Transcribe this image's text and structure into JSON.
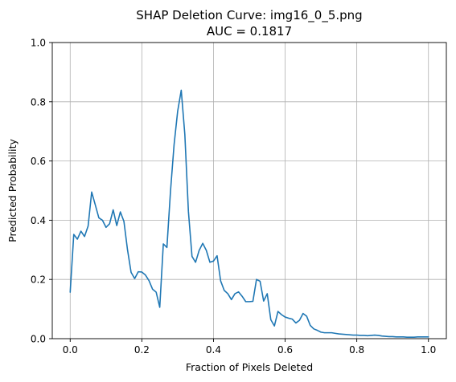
{
  "chart_data": {
    "type": "line",
    "title": "SHAP Deletion Curve: img16_0_5.png",
    "subtitle": "AUC = 0.1817",
    "xlabel": "Fraction of Pixels Deleted",
    "ylabel": "Predicted Probability",
    "xlim": [
      -0.05,
      1.05
    ],
    "ylim": [
      0.0,
      1.0
    ],
    "xticks": [
      0.0,
      0.2,
      0.4,
      0.6,
      0.8,
      1.0
    ],
    "xtick_labels": [
      "0.0",
      "0.2",
      "0.4",
      "0.6",
      "0.8",
      "1.0"
    ],
    "yticks": [
      0.0,
      0.2,
      0.4,
      0.6,
      0.8,
      1.0
    ],
    "ytick_labels": [
      "0.0",
      "0.2",
      "0.4",
      "0.6",
      "0.8",
      "1.0"
    ],
    "grid": true,
    "series": [
      {
        "color": "#1f77b4",
        "x": [
          0.0,
          0.01,
          0.02,
          0.03,
          0.04,
          0.05,
          0.06,
          0.07,
          0.08,
          0.09,
          0.1,
          0.11,
          0.12,
          0.13,
          0.14,
          0.15,
          0.16,
          0.17,
          0.18,
          0.19,
          0.2,
          0.21,
          0.22,
          0.23,
          0.24,
          0.25,
          0.26,
          0.27,
          0.28,
          0.29,
          0.3,
          0.31,
          0.32,
          0.33,
          0.34,
          0.35,
          0.36,
          0.37,
          0.38,
          0.39,
          0.4,
          0.41,
          0.42,
          0.43,
          0.44,
          0.45,
          0.46,
          0.47,
          0.48,
          0.49,
          0.5,
          0.51,
          0.52,
          0.53,
          0.54,
          0.55,
          0.56,
          0.57,
          0.58,
          0.59,
          0.6,
          0.61,
          0.62,
          0.63,
          0.64,
          0.65,
          0.66,
          0.67,
          0.68,
          0.69,
          0.7,
          0.71,
          0.72,
          0.73,
          0.74,
          0.75,
          0.76,
          0.77,
          0.78,
          0.79,
          0.8,
          0.81,
          0.82,
          0.83,
          0.84,
          0.85,
          0.86,
          0.87,
          0.88,
          0.89,
          0.9,
          0.91,
          0.92,
          0.93,
          0.94,
          0.95,
          0.96,
          0.97,
          0.98,
          0.99,
          1.0
        ],
        "y": [
          0.157,
          0.352,
          0.336,
          0.363,
          0.345,
          0.38,
          0.495,
          0.452,
          0.408,
          0.4,
          0.376,
          0.388,
          0.435,
          0.382,
          0.428,
          0.396,
          0.3,
          0.224,
          0.203,
          0.226,
          0.225,
          0.215,
          0.196,
          0.167,
          0.157,
          0.106,
          0.32,
          0.308,
          0.498,
          0.655,
          0.768,
          0.839,
          0.69,
          0.43,
          0.278,
          0.258,
          0.298,
          0.322,
          0.298,
          0.258,
          0.262,
          0.28,
          0.195,
          0.163,
          0.152,
          0.132,
          0.152,
          0.158,
          0.143,
          0.125,
          0.125,
          0.126,
          0.2,
          0.194,
          0.127,
          0.152,
          0.064,
          0.043,
          0.092,
          0.081,
          0.073,
          0.069,
          0.066,
          0.053,
          0.062,
          0.085,
          0.076,
          0.045,
          0.033,
          0.028,
          0.022,
          0.02,
          0.02,
          0.02,
          0.018,
          0.016,
          0.015,
          0.014,
          0.013,
          0.012,
          0.012,
          0.011,
          0.011,
          0.01,
          0.011,
          0.012,
          0.011,
          0.009,
          0.008,
          0.007,
          0.007,
          0.006,
          0.006,
          0.006,
          0.005,
          0.005,
          0.005,
          0.006,
          0.006,
          0.006,
          0.006
        ]
      }
    ]
  }
}
